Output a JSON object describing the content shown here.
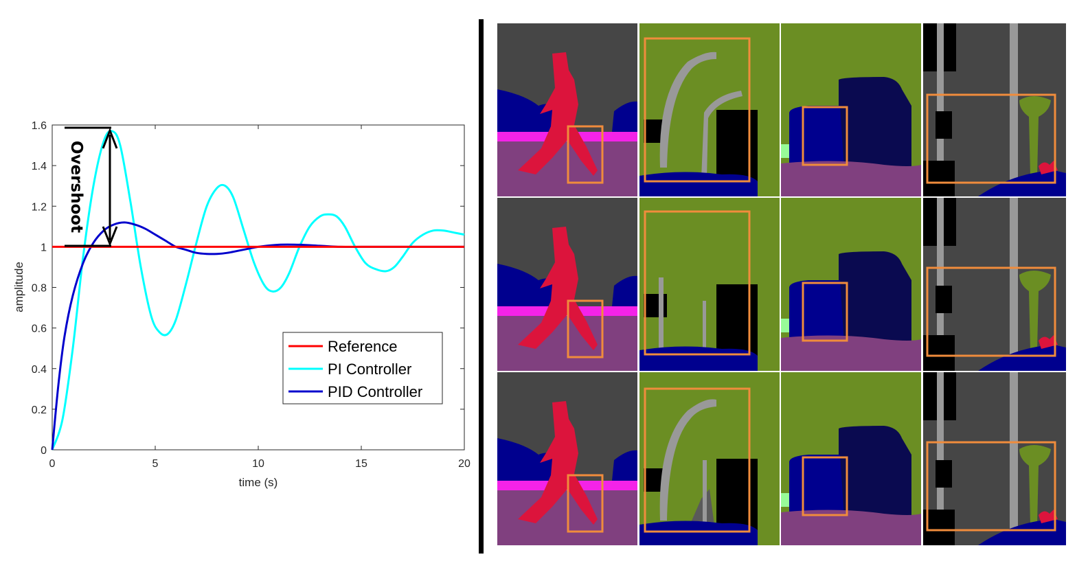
{
  "chart_data": {
    "type": "line",
    "title": "",
    "xlabel": "time (s)",
    "ylabel": "amplitude",
    "xlim": [
      0,
      20
    ],
    "ylim": [
      0,
      1.6
    ],
    "xticks": [
      "0",
      "5",
      "10",
      "15",
      "20"
    ],
    "yticks": [
      "0",
      "0.2",
      "0.4",
      "0.6",
      "0.8",
      "1",
      "1.2",
      "1.4",
      "1.6"
    ],
    "grid": false,
    "legend_position": "bottom-right",
    "series": [
      {
        "name": "Reference",
        "color": "#ff0000",
        "x": [
          0,
          20
        ],
        "y": [
          1,
          1
        ]
      },
      {
        "name": "PI Controller",
        "color": "#00ffff",
        "x": [
          0,
          0.5,
          1.0,
          1.5,
          2.0,
          2.5,
          2.9,
          3.3,
          3.8,
          4.3,
          4.8,
          5.2,
          5.6,
          6.0,
          6.5,
          7.0,
          7.5,
          8.0,
          8.4,
          8.8,
          9.3,
          9.8,
          10.3,
          10.7,
          11.1,
          11.5,
          12.0,
          12.5,
          13.0,
          13.4,
          13.8,
          14.2,
          14.7,
          15.2,
          15.7,
          16.2,
          16.6,
          17.0,
          17.5,
          18.0,
          18.5,
          19.0,
          19.5,
          20.0
        ],
        "y": [
          0,
          0.15,
          0.5,
          0.95,
          1.3,
          1.52,
          1.57,
          1.5,
          1.22,
          0.9,
          0.66,
          0.58,
          0.57,
          0.64,
          0.82,
          1.02,
          1.2,
          1.29,
          1.3,
          1.24,
          1.08,
          0.92,
          0.81,
          0.78,
          0.8,
          0.87,
          1.0,
          1.1,
          1.15,
          1.16,
          1.15,
          1.1,
          1.0,
          0.92,
          0.89,
          0.88,
          0.9,
          0.95,
          1.02,
          1.06,
          1.08,
          1.08,
          1.07,
          1.06
        ]
      },
      {
        "name": "PID Controller",
        "color": "#0000cc",
        "x": [
          0,
          0.3,
          0.6,
          1.0,
          1.5,
          2.0,
          2.5,
          3.0,
          3.5,
          4.0,
          4.5,
          5.0,
          5.5,
          6.0,
          6.5,
          7.0,
          7.5,
          8.0,
          8.5,
          9.0,
          9.5,
          10.0,
          11.0,
          12.0,
          13.0,
          14.0,
          15.0,
          16.0,
          18.0,
          20.0
        ],
        "y": [
          0,
          0.32,
          0.56,
          0.76,
          0.92,
          1.02,
          1.08,
          1.11,
          1.12,
          1.11,
          1.09,
          1.06,
          1.03,
          1.0,
          0.985,
          0.97,
          0.965,
          0.965,
          0.97,
          0.98,
          0.99,
          1.0,
          1.01,
          1.01,
          1.005,
          1.0,
          1.0,
          1.0,
          1.0,
          1.0
        ]
      }
    ],
    "annotation": {
      "text": "Overshoot",
      "from": [
        2.9,
        1.0
      ],
      "to": [
        2.9,
        1.57
      ]
    }
  },
  "segmentation_grid": {
    "rows": 3,
    "columns": 4,
    "highlight_color": "#f08c3c",
    "class_colors": {
      "sky": "#464646",
      "person": "#dc143c",
      "car": "#00008e",
      "sidewalk": "#f423e8",
      "road": "#80407f",
      "vegetation": "#6b8e23",
      "pole": "#999999",
      "building": "#000000",
      "terrain": "#98fb98",
      "traffic-sign": "#dcdc00"
    }
  }
}
